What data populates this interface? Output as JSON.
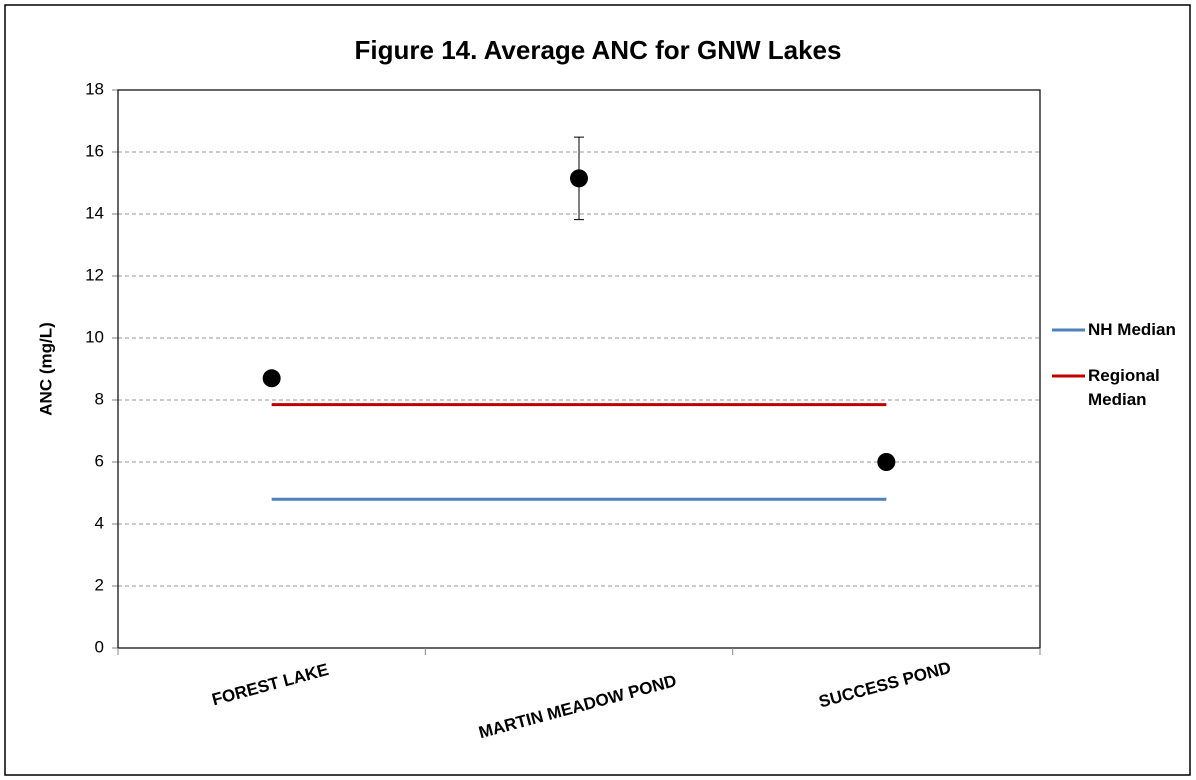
{
  "chart_data": {
    "type": "line",
    "title": "Figure 14. Average ANC for GNW Lakes",
    "y_label": "ANC (mg/L)",
    "categories": [
      "FOREST LAKE",
      "MARTIN MEADOW POND",
      "SUCCESS POND"
    ],
    "series": [
      {
        "color": "#000000",
        "marker": "circle",
        "line": false,
        "values": [
          8.7,
          15.15,
          6.0
        ],
        "errors": [
          null,
          1.33,
          null
        ]
      },
      {
        "name": "NH Median",
        "color": "#4f81bd",
        "marker": "none",
        "line": true,
        "values": [
          4.8,
          4.8,
          4.8
        ]
      },
      {
        "name": "Regional Median",
        "color": "#c00000",
        "marker": "none",
        "line": true,
        "values": [
          7.85,
          7.85,
          7.85
        ]
      }
    ],
    "ylim": [
      0,
      18
    ],
    "yticks": [
      0,
      2,
      4,
      6,
      8,
      10,
      12,
      14,
      16,
      18
    ],
    "grid": true,
    "legend": "right"
  }
}
